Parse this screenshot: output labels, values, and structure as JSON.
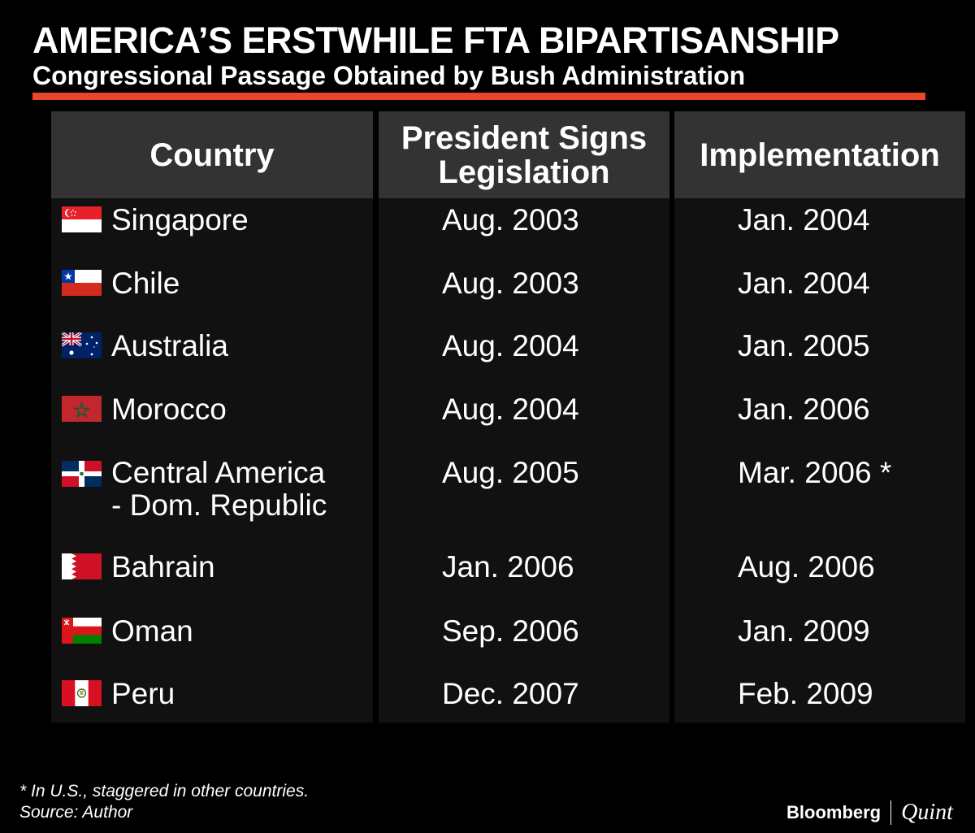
{
  "title": "AMERICA’S ERSTWHILE FTA BIPARTISANSHIP",
  "subtitle": "Congressional Passage Obtained by Bush Administration",
  "accent_color": "#e8472a",
  "table": {
    "headers": [
      "Country",
      "President Signs Legislation",
      "Implementation"
    ],
    "rows": [
      {
        "country": "Singapore",
        "flag": "singapore-flag",
        "signed": "Aug. 2003",
        "implemented": "Jan. 2004"
      },
      {
        "country": "Chile",
        "flag": "chile-flag",
        "signed": "Aug. 2003",
        "implemented": "Jan. 2004"
      },
      {
        "country": "Australia",
        "flag": "australia-flag",
        "signed": "Aug. 2004",
        "implemented": "Jan. 2005"
      },
      {
        "country": "Morocco",
        "flag": "morocco-flag",
        "signed": "Aug. 2004",
        "implemented": "Jan. 2006"
      },
      {
        "country": "Central America",
        "country_line2": "- Dom. Republic",
        "flag": "dominican-republic-flag",
        "signed": "Aug. 2005",
        "implemented": "Mar. 2006 *"
      },
      {
        "country": "Bahrain",
        "flag": "bahrain-flag",
        "signed": "Jan. 2006",
        "implemented": "Aug. 2006"
      },
      {
        "country": "Oman",
        "flag": "oman-flag",
        "signed": "Sep. 2006",
        "implemented": "Jan. 2009"
      },
      {
        "country": "Peru",
        "flag": "peru-flag",
        "signed": "Dec. 2007",
        "implemented": "Feb. 2009"
      }
    ]
  },
  "footnote": "* In U.S., staggered in other countries.",
  "source": "Source: Author",
  "brand": {
    "primary": "Bloomberg",
    "secondary": "Quint"
  }
}
